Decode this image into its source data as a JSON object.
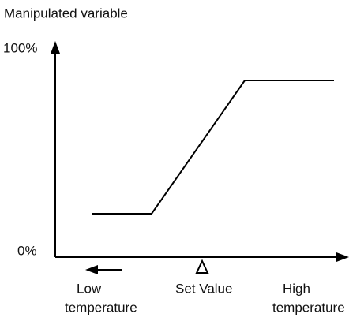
{
  "title": "Manipulated variable",
  "y_axis": {
    "top_label": "100%",
    "bottom_label": "0%"
  },
  "x_axis": {
    "low_label": [
      "Low",
      "temperature"
    ],
    "set_label": "Set Value",
    "high_label": [
      "High",
      "temperature"
    ]
  }
}
